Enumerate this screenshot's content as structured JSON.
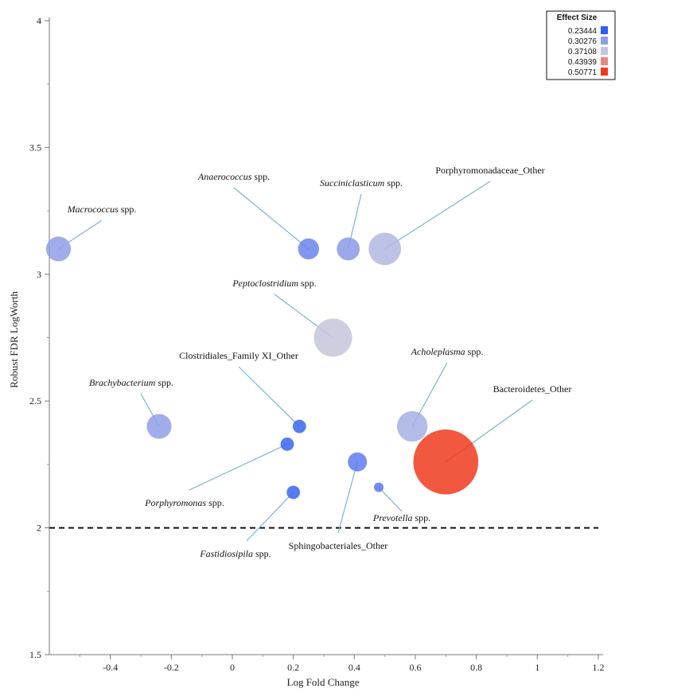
{
  "chart_data": {
    "type": "scatter",
    "title": "",
    "xlabel": "Log Fold Change",
    "ylabel": "Robust FDR LogWorth",
    "xlim": [
      -0.6,
      1.2
    ],
    "ylim": [
      1.5,
      4.0
    ],
    "xticks": [
      -0.4,
      -0.2,
      0,
      0.2,
      0.4,
      0.6,
      0.8,
      1,
      1.2
    ],
    "xtick_labels": [
      "-0.4",
      "-0.2",
      "0",
      "0.2",
      "0.4",
      "0.6",
      "0.8",
      "1",
      "1.2"
    ],
    "yticks": [
      1.5,
      2,
      2.5,
      3,
      3.5,
      4
    ],
    "ytick_labels": [
      "1.5",
      "2",
      "2.5",
      "3",
      "3.5",
      "4"
    ],
    "threshold": {
      "y": 2.0,
      "style": "dashed"
    },
    "legend": {
      "title": "Effect Size",
      "placement": "top-right",
      "entries": [
        {
          "label": "0.23444",
          "color": "#2f5cf0"
        },
        {
          "label": "0.30276",
          "color": "#8f9fe6"
        },
        {
          "label": "0.37108",
          "color": "#c4c6da"
        },
        {
          "label": "0.43939",
          "color": "#e08c84"
        },
        {
          "label": "0.50771",
          "color": "#f03a1f"
        }
      ]
    },
    "points": [
      {
        "id": "macrococcus",
        "x": -0.57,
        "y": 3.1,
        "effect": 0.3,
        "color": "#8f9fe6",
        "label": "Macrococcus",
        "suffix": " spp.",
        "italic": true
      },
      {
        "id": "anaerococcus",
        "x": 0.25,
        "y": 3.1,
        "effect": 0.28,
        "color": "#6b84ec",
        "label": "Anaerococcus",
        "suffix": " spp.",
        "italic": true
      },
      {
        "id": "succiniclasticum",
        "x": 0.38,
        "y": 3.1,
        "effect": 0.29,
        "color": "#8a9ae6",
        "label": "Succiniclasticum",
        "suffix": " spp.",
        "italic": true
      },
      {
        "id": "porphyromonadaceae",
        "x": 0.5,
        "y": 3.1,
        "effect": 0.34,
        "color": "#b2b8e2",
        "label": "Porphyromonadaceae_Other",
        "suffix": "",
        "italic": false
      },
      {
        "id": "peptoclostridium",
        "x": 0.33,
        "y": 2.75,
        "effect": 0.37,
        "color": "#c4c6da",
        "label": "Peptoclostridium",
        "suffix": " spp.",
        "italic": true
      },
      {
        "id": "clostridiales",
        "x": 0.22,
        "y": 2.4,
        "effect": 0.24,
        "color": "#3a65f0",
        "label": "Clostridiales_Family XI_Other",
        "suffix": "",
        "italic": false
      },
      {
        "id": "brachybacterium",
        "x": -0.24,
        "y": 2.4,
        "effect": 0.3,
        "color": "#8f9fe6",
        "label": "Brachybacterium",
        "suffix": " spp.",
        "italic": true
      },
      {
        "id": "acholeplasma",
        "x": 0.59,
        "y": 2.4,
        "effect": 0.33,
        "color": "#a6afe3",
        "label": "Acholeplasma",
        "suffix": " spp.",
        "italic": true
      },
      {
        "id": "bacteroidetes",
        "x": 0.7,
        "y": 2.26,
        "effect": 0.51,
        "color": "#f03a1f",
        "label": "Bacteroidetes_Other",
        "suffix": "",
        "italic": false
      },
      {
        "id": "porphyromonas",
        "x": 0.18,
        "y": 2.33,
        "effect": 0.24,
        "color": "#3a65f0",
        "label": "Porphyromonas",
        "suffix": " spp.",
        "italic": true
      },
      {
        "id": "sphingobacteriales",
        "x": 0.41,
        "y": 2.26,
        "effect": 0.27,
        "color": "#5f7bed",
        "label": "Sphingobacteriales_Other",
        "suffix": "",
        "italic": false
      },
      {
        "id": "prevotella",
        "x": 0.48,
        "y": 2.16,
        "effect": 0.27,
        "color": "#5a77ee",
        "label": "Prevotella",
        "suffix": " spp.",
        "italic": true
      },
      {
        "id": "fastidiosipila",
        "x": 0.2,
        "y": 2.14,
        "effect": 0.24,
        "color": "#3a65f0",
        "label": "Fastidiosipila",
        "suffix": " spp.",
        "italic": true
      }
    ]
  }
}
